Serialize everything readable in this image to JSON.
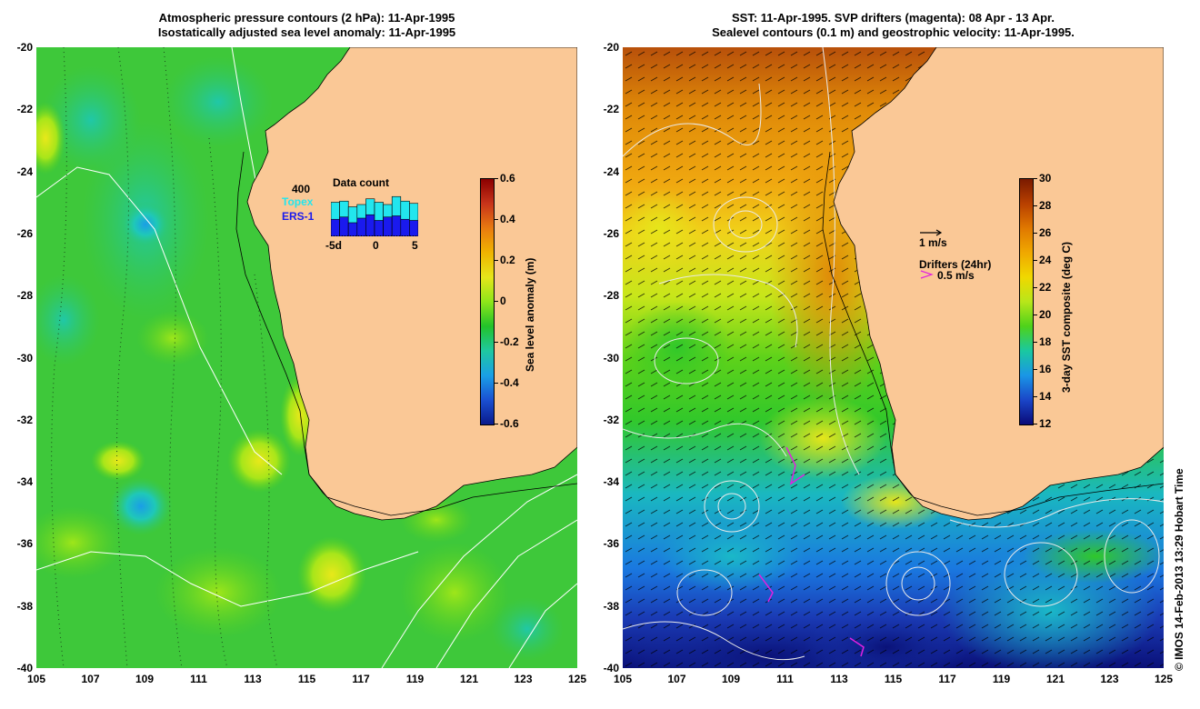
{
  "left_panel": {
    "title_line1": "Atmospheric pressure contours (2 hPa): 11-Apr-1995",
    "title_line2": "Isostatically adjusted sea level anomaly: 11-Apr-1995",
    "colorbar": {
      "label": "Sea level anomaly (m)",
      "ticks": [
        "0.6",
        "0.4",
        "0.2",
        "0",
        "-0.2",
        "-0.4",
        "-0.6"
      ],
      "colors": [
        "#8b0000",
        "#c8341a",
        "#e87a10",
        "#f0b400",
        "#e6e61a",
        "#8ee61a",
        "#22c22a",
        "#1fc8a0",
        "#1aa0e6",
        "#1a50d2",
        "#0a1a8c"
      ]
    },
    "inset": {
      "count_label": "400",
      "title": "Data count",
      "legend_topex": "Topex",
      "legend_ers": "ERS-1",
      "x_ticks": [
        "-5d",
        "0",
        "5"
      ],
      "topex_color": "#22e6ee",
      "ers_color": "#1a1aee",
      "topex_counts": [
        300,
        310,
        260,
        280,
        330,
        300,
        280,
        350,
        310,
        290
      ],
      "ers_counts": [
        150,
        170,
        120,
        160,
        190,
        140,
        170,
        180,
        150,
        140
      ]
    }
  },
  "right_panel": {
    "title_line1": "SST: 11-Apr-1995. SVP drifters (magenta): 08 Apr - 13 Apr.",
    "title_line2": "Sealevel contours (0.1 m) and geostrophic velocity: 11-Apr-1995.",
    "colorbar": {
      "label": "3-day SST composite (deg C)",
      "ticks": [
        "30",
        "28",
        "26",
        "24",
        "22",
        "20",
        "18",
        "16",
        "14",
        "12"
      ],
      "colors": [
        "#7a1a00",
        "#b84000",
        "#e07800",
        "#f0a800",
        "#f0d800",
        "#b8e61a",
        "#4ed21a",
        "#1ac8a0",
        "#1a96e6",
        "#1a46c8",
        "#0a0a78"
      ]
    },
    "legend_scale": "1 m/s",
    "legend_drifters": "Drifters (24hr)",
    "legend_drifter_speed": "0.5 m/s",
    "drifter_color": "#e020e0"
  },
  "axes": {
    "lat_ticks": [
      "-20",
      "-22",
      "-24",
      "-26",
      "-28",
      "-30",
      "-32",
      "-34",
      "-36",
      "-38",
      "-40"
    ],
    "lon_ticks": [
      "105",
      "107",
      "109",
      "111",
      "113",
      "115",
      "117",
      "119",
      "121",
      "123",
      "125"
    ],
    "lat_range": [
      -40,
      -20
    ],
    "lon_range": [
      105,
      125
    ]
  },
  "land_color": "#fac896",
  "credit": "© IMOS 14-Feb-2013 13:29 Hobart Time"
}
